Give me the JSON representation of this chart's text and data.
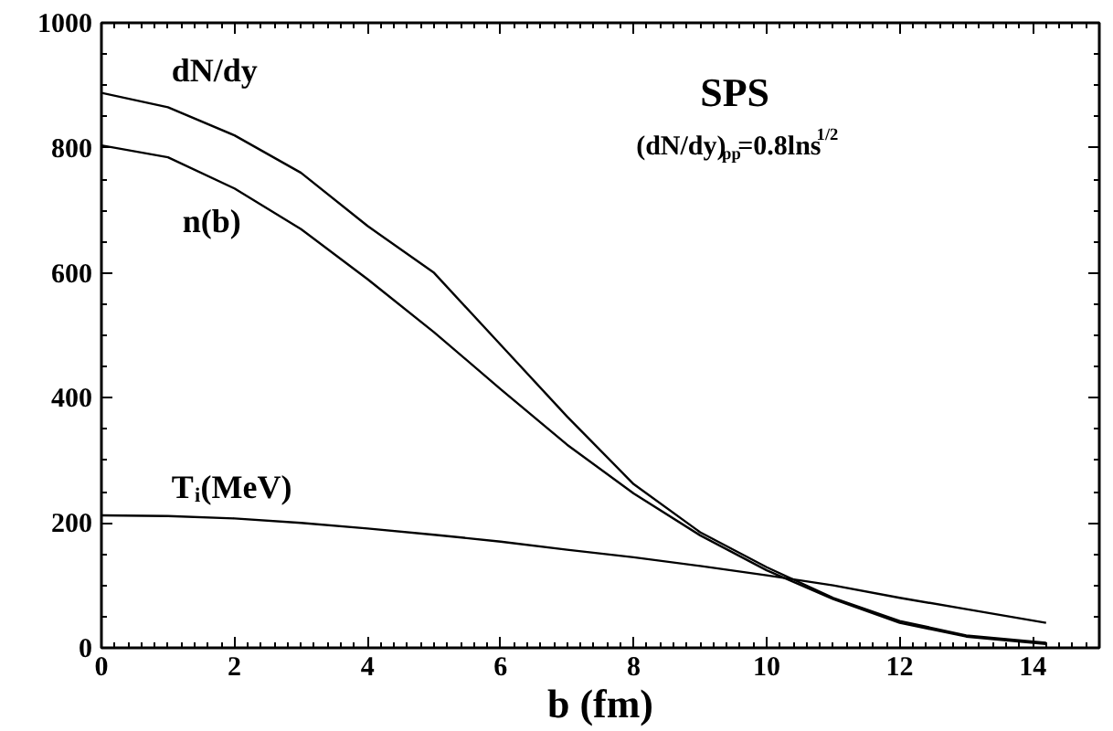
{
  "chart_data": {
    "type": "line",
    "xlabel": "b (fm)",
    "xlim": [
      0,
      15
    ],
    "ylim": [
      0,
      1000
    ],
    "xticks": [
      0,
      2,
      4,
      6,
      8,
      10,
      12,
      14
    ],
    "yticks": [
      0,
      200,
      400,
      600,
      800,
      1000
    ],
    "grid": false,
    "legend": "left",
    "marker": "none",
    "line_style": "solid",
    "annotations": [
      "SPS",
      "(dN/dy)$_{pp}$=0.8lns$^{1/2}$"
    ],
    "series": [
      {
        "name": "dN/dy",
        "color": "#000000",
        "x": [
          0,
          1,
          2,
          3,
          4,
          5,
          6,
          7,
          8,
          9,
          10,
          11,
          12,
          13,
          14.2
        ],
        "values": [
          888,
          865,
          820,
          760,
          675,
          600,
          485,
          370,
          262,
          185,
          129,
          80,
          43,
          20,
          8
        ]
      },
      {
        "name": "n(b)",
        "color": "#000000",
        "x": [
          0,
          1,
          2,
          3,
          4,
          5,
          6,
          7,
          8,
          9,
          10,
          11,
          12,
          13,
          14.2
        ],
        "values": [
          804,
          785,
          735,
          670,
          590,
          505,
          414,
          325,
          247,
          180,
          124,
          78,
          40,
          18,
          6
        ]
      },
      {
        "name": "T$_{i}$(MeV)",
        "color": "#000000",
        "x": [
          0,
          1,
          2,
          3,
          4,
          5,
          6,
          7,
          8,
          9,
          10,
          11,
          12,
          13,
          14.2
        ],
        "values": [
          212,
          211,
          207,
          200,
          191,
          181,
          170,
          157,
          145,
          131,
          116,
          100,
          80,
          62,
          40
        ]
      }
    ]
  }
}
